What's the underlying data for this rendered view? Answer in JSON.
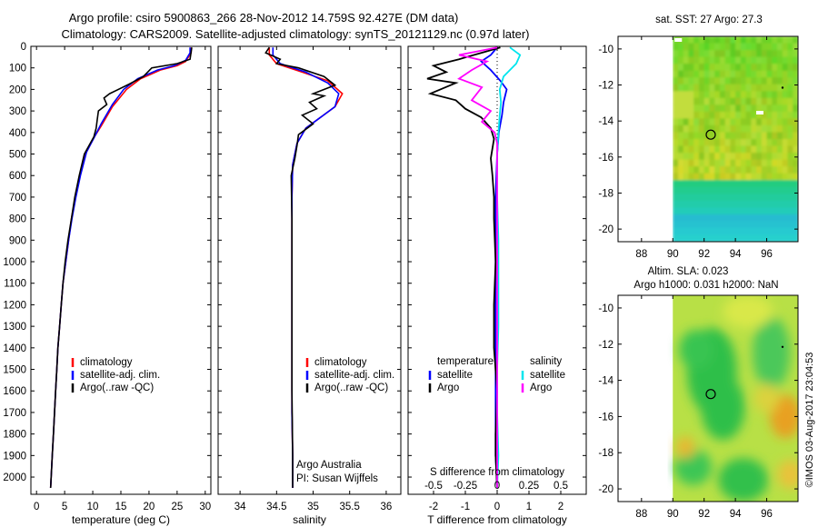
{
  "header": {
    "line1": "Argo profile: csiro 5900863_266 28-Nov-2012 14.759S 92.427E (DM data)",
    "line2": "Climatology: CARS2009. Satellite-adjusted climatology: synTS_20121129.nc (0.97d later)"
  },
  "colors": {
    "climatology": "#ff0000",
    "satellite": "#0000ff",
    "argo": "#000000",
    "argo_salinity_diff": "#ff00ff",
    "satellite_salinity_diff": "#00e5ee"
  },
  "chart_data": [
    {
      "type": "line",
      "id": "temperature",
      "xlabel": "temperature (deg C)",
      "ylabel": "",
      "xlim": [
        -1,
        31
      ],
      "ylim": [
        2080,
        0
      ],
      "xticks": [
        0,
        5,
        10,
        15,
        20,
        25,
        30
      ],
      "yticks": [
        0,
        100,
        200,
        300,
        400,
        500,
        600,
        700,
        800,
        900,
        1000,
        1100,
        1200,
        1300,
        1400,
        1500,
        1600,
        1700,
        1800,
        1900,
        2000
      ],
      "legend": [
        "climatology",
        "satellite-adj. clim.",
        "Argo(..raw -QC)"
      ],
      "series": [
        {
          "name": "climatology",
          "color_key": "climatology",
          "points": [
            [
              27.5,
              5
            ],
            [
              27.5,
              30
            ],
            [
              26.5,
              70
            ],
            [
              25,
              90
            ],
            [
              22,
              110
            ],
            [
              18.5,
              150
            ],
            [
              16,
              200
            ],
            [
              13.5,
              280
            ],
            [
              11.5,
              370
            ],
            [
              10.3,
              420
            ],
            [
              8.7,
              500
            ],
            [
              7.7,
              600
            ],
            [
              6.9,
              700
            ],
            [
              6.2,
              800
            ],
            [
              5.7,
              900
            ],
            [
              5.2,
              1000
            ],
            [
              4.7,
              1100
            ],
            [
              4.4,
              1200
            ],
            [
              4.1,
              1300
            ],
            [
              3.8,
              1400
            ],
            [
              3.6,
              1500
            ],
            [
              3.4,
              1600
            ],
            [
              3.2,
              1700
            ],
            [
              3,
              1800
            ],
            [
              2.8,
              1900
            ],
            [
              2.6,
              2000
            ],
            [
              2.5,
              2050
            ]
          ]
        },
        {
          "name": "satellite-adj. clim.",
          "color_key": "satellite",
          "points": [
            [
              27.3,
              5
            ],
            [
              27.3,
              30
            ],
            [
              26.5,
              65
            ],
            [
              24.5,
              90
            ],
            [
              21.5,
              110
            ],
            [
              18,
              150
            ],
            [
              15.5,
              200
            ],
            [
              13.5,
              270
            ],
            [
              11.5,
              360
            ],
            [
              10.5,
              410
            ],
            [
              8.9,
              490
            ],
            [
              7.8,
              600
            ],
            [
              7,
              700
            ],
            [
              6.3,
              800
            ],
            [
              5.7,
              900
            ],
            [
              5.2,
              1000
            ],
            [
              4.7,
              1100
            ],
            [
              4.4,
              1200
            ],
            [
              4.1,
              1300
            ],
            [
              3.8,
              1400
            ],
            [
              3.6,
              1500
            ],
            [
              3.4,
              1600
            ],
            [
              3.2,
              1700
            ],
            [
              3,
              1800
            ],
            [
              2.8,
              1900
            ],
            [
              2.6,
              2000
            ],
            [
              2.5,
              2050
            ]
          ]
        },
        {
          "name": "Argo(..raw -QC)",
          "color_key": "argo",
          "points": [
            [
              27.6,
              5
            ],
            [
              27.3,
              60
            ],
            [
              25,
              80
            ],
            [
              20.5,
              100
            ],
            [
              19,
              140
            ],
            [
              16.5,
              175
            ],
            [
              13,
              220
            ],
            [
              12,
              240
            ],
            [
              12.5,
              270
            ],
            [
              11,
              300
            ],
            [
              10.8,
              340
            ],
            [
              10.6,
              380
            ],
            [
              10.2,
              420
            ],
            [
              8.5,
              500
            ],
            [
              7.6,
              600
            ],
            [
              6.8,
              700
            ],
            [
              6.2,
              800
            ],
            [
              5.6,
              900
            ],
            [
              5.1,
              1000
            ],
            [
              4.7,
              1100
            ],
            [
              4.4,
              1200
            ],
            [
              4.1,
              1300
            ],
            [
              3.8,
              1400
            ],
            [
              3.6,
              1500
            ],
            [
              3.4,
              1600
            ],
            [
              3.2,
              1700
            ],
            [
              3,
              1800
            ],
            [
              2.8,
              1900
            ],
            [
              2.6,
              2000
            ],
            [
              2.5,
              2050
            ]
          ]
        }
      ]
    },
    {
      "type": "line",
      "id": "salinity",
      "xlabel": "salinity",
      "xlim": [
        33.7,
        36.2
      ],
      "ylim": [
        2080,
        0
      ],
      "xticks": [
        34,
        34.5,
        35,
        35.5,
        36
      ],
      "legend": [
        "climatology",
        "satellite-adj. clim.",
        "Argo(..raw -QC)"
      ],
      "annotation": [
        "Argo Australia",
        "PI: Susan Wijffels"
      ],
      "series": [
        {
          "name": "climatology",
          "color_key": "climatology",
          "points": [
            [
              34.4,
              5
            ],
            [
              34.4,
              40
            ],
            [
              34.5,
              80
            ],
            [
              34.85,
              120
            ],
            [
              35.2,
              160
            ],
            [
              35.4,
              220
            ],
            [
              35.3,
              280
            ],
            [
              35.1,
              330
            ],
            [
              34.9,
              380
            ],
            [
              34.78,
              450
            ],
            [
              34.72,
              550
            ],
            [
              34.71,
              700
            ],
            [
              34.71,
              900
            ],
            [
              34.71,
              1100
            ],
            [
              34.71,
              1300
            ],
            [
              34.71,
              1500
            ],
            [
              34.71,
              1700
            ],
            [
              34.72,
              1900
            ],
            [
              34.72,
              2050
            ]
          ]
        },
        {
          "name": "satellite-adj. clim.",
          "color_key": "satellite",
          "points": [
            [
              34.45,
              5
            ],
            [
              34.45,
              40
            ],
            [
              34.55,
              80
            ],
            [
              34.9,
              120
            ],
            [
              35.2,
              170
            ],
            [
              35.35,
              220
            ],
            [
              35.3,
              280
            ],
            [
              35.1,
              330
            ],
            [
              34.9,
              380
            ],
            [
              34.78,
              450
            ],
            [
              34.72,
              550
            ],
            [
              34.71,
              700
            ],
            [
              34.71,
              900
            ],
            [
              34.71,
              1100
            ],
            [
              34.71,
              1300
            ],
            [
              34.71,
              1500
            ],
            [
              34.71,
              1700
            ],
            [
              34.72,
              1900
            ],
            [
              34.72,
              2050
            ]
          ]
        },
        {
          "name": "Argo(..raw -QC)",
          "color_key": "argo",
          "points": [
            [
              34.4,
              5
            ],
            [
              34.35,
              30
            ],
            [
              34.55,
              60
            ],
            [
              34.5,
              80
            ],
            [
              34.8,
              100
            ],
            [
              35.15,
              140
            ],
            [
              35.3,
              180
            ],
            [
              35,
              220
            ],
            [
              35.15,
              230
            ],
            [
              34.95,
              260
            ],
            [
              35.05,
              290
            ],
            [
              34.85,
              320
            ],
            [
              35.0,
              360
            ],
            [
              34.8,
              410
            ],
            [
              34.78,
              460
            ],
            [
              34.75,
              520
            ],
            [
              34.7,
              600
            ],
            [
              34.71,
              800
            ],
            [
              34.71,
              1000
            ],
            [
              34.71,
              1300
            ],
            [
              34.71,
              1600
            ],
            [
              34.72,
              1900
            ],
            [
              34.72,
              2050
            ]
          ]
        }
      ]
    },
    {
      "type": "line",
      "id": "differences",
      "xlabel": "T difference from climatology",
      "xlabel_top": "S difference from climatology",
      "xlim": [
        -2.8,
        2.8
      ],
      "ylim": [
        2080,
        0
      ],
      "xticks": [
        -2,
        -1,
        0,
        1,
        2
      ],
      "sticks": [
        -0.5,
        -0.25,
        0,
        0.25,
        0.5
      ],
      "slim": [
        -0.7,
        0.7
      ],
      "legend_titles": [
        "temperature",
        "salinity"
      ],
      "legend": [
        [
          "satellite",
          "Argo"
        ],
        [
          "satellite",
          "Argo"
        ]
      ],
      "series": [
        {
          "name": "T satellite",
          "color_key": "satellite",
          "axis": "T",
          "points": [
            [
              0,
              5
            ],
            [
              -0.2,
              40
            ],
            [
              -0.5,
              70
            ],
            [
              -0.2,
              110
            ],
            [
              0.1,
              160
            ],
            [
              0.3,
              200
            ],
            [
              0.2,
              260
            ],
            [
              0.15,
              320
            ],
            [
              0.05,
              400
            ],
            [
              0,
              500
            ],
            [
              -0.05,
              700
            ],
            [
              -0.05,
              1000
            ],
            [
              -0.05,
              1300
            ],
            [
              -0.05,
              1600
            ],
            [
              -0.05,
              1900
            ],
            [
              0,
              2050
            ]
          ]
        },
        {
          "name": "T Argo",
          "color_key": "argo",
          "axis": "T",
          "points": [
            [
              0.1,
              5
            ],
            [
              -1.2,
              60
            ],
            [
              -2,
              90
            ],
            [
              -1.6,
              120
            ],
            [
              -2.2,
              150
            ],
            [
              -1.3,
              170
            ],
            [
              -2.1,
              220
            ],
            [
              -1.3,
              250
            ],
            [
              -1,
              290
            ],
            [
              -0.5,
              330
            ],
            [
              -0.2,
              380
            ],
            [
              -0.1,
              430
            ],
            [
              -0.2,
              520
            ],
            [
              -0.15,
              600
            ],
            [
              -0.1,
              700
            ],
            [
              -0.1,
              800
            ],
            [
              -0.05,
              1000
            ],
            [
              -0.1,
              1200
            ],
            [
              -0.1,
              1400
            ],
            [
              0,
              1600
            ],
            [
              -0.05,
              1800
            ],
            [
              -0.05,
              1900
            ],
            [
              0,
              2050
            ]
          ]
        },
        {
          "name": "S satellite",
          "color_key": "satellite_salinity_diff",
          "axis": "S",
          "points": [
            [
              0.1,
              5
            ],
            [
              0.18,
              40
            ],
            [
              0.15,
              80
            ],
            [
              0.1,
              110
            ],
            [
              0.05,
              140
            ],
            [
              0.02,
              200
            ],
            [
              0.03,
              260
            ],
            [
              0.02,
              320
            ],
            [
              0.01,
              400
            ],
            [
              0.0,
              500
            ],
            [
              0,
              700
            ],
            [
              0.01,
              900
            ],
            [
              0.01,
              1100
            ],
            [
              0.01,
              1300
            ],
            [
              0,
              1500
            ],
            [
              0,
              1700
            ],
            [
              0.01,
              1900
            ],
            [
              0,
              2050
            ]
          ]
        },
        {
          "name": "S Argo",
          "color_key": "argo_salinity_diff",
          "axis": "S",
          "points": [
            [
              0,
              5
            ],
            [
              -0.3,
              40
            ],
            [
              -0.08,
              70
            ],
            [
              -0.2,
              110
            ],
            [
              -0.3,
              150
            ],
            [
              -0.12,
              190
            ],
            [
              -0.2,
              250
            ],
            [
              -0.05,
              300
            ],
            [
              -0.12,
              350
            ],
            [
              -0.02,
              400
            ],
            [
              0,
              450
            ],
            [
              0,
              700
            ],
            [
              0,
              1000
            ],
            [
              0,
              1300
            ],
            [
              0,
              1600
            ],
            [
              0,
              2050
            ]
          ]
        }
      ]
    },
    {
      "type": "heatmap",
      "id": "sst-map",
      "title": "sat. SST: 27 Argo: 27.3",
      "xlim": [
        86.5,
        98
      ],
      "ylim": [
        -20.7,
        -9.3
      ],
      "xticks": [
        88,
        90,
        92,
        94,
        96
      ],
      "yticks": [
        -10,
        -12,
        -14,
        -16,
        -18,
        -20
      ],
      "argo_position": [
        92.427,
        -14.759
      ]
    },
    {
      "type": "heatmap",
      "id": "sla-map",
      "title": "Altim. SLA: 0.023",
      "subtitle": "Argo h1000: 0.031 h2000: NaN",
      "xlim": [
        86.5,
        98
      ],
      "ylim": [
        -20.7,
        -9.3
      ],
      "xticks": [
        88,
        90,
        92,
        94,
        96
      ],
      "yticks": [
        -10,
        -12,
        -14,
        -16,
        -18,
        -20
      ],
      "argo_position": [
        92.427,
        -14.759
      ]
    }
  ],
  "footer": {
    "credit": "©IMOS 03-Aug-2017 23:04:53"
  }
}
